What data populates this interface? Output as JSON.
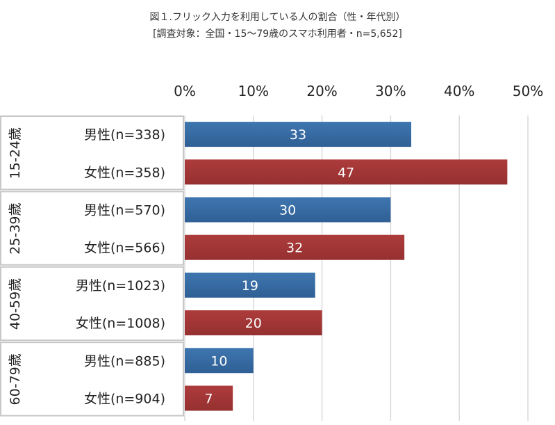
{
  "chart_data": {
    "type": "bar",
    "orientation": "horizontal",
    "title": "図１.フリック入力を利用している人の割合（性・年代別）",
    "subtitle": "[調査対象：全国・15～79歳のスマホ利用者・n=5,652]",
    "xlim": [
      0,
      50
    ],
    "x_ticks": [
      "0%",
      "10%",
      "20%",
      "30%",
      "40%",
      "50%"
    ],
    "x_tick_values": [
      0,
      10,
      20,
      30,
      40,
      50
    ],
    "axis_position": "top",
    "grid": true,
    "groups": [
      "15-24歳",
      "25-39歳",
      "40-59歳",
      "60-79歳"
    ],
    "categories": [
      "男性(n=338)",
      "女性(n=358)",
      "男性(n=570)",
      "女性(n=566)",
      "男性(n=1023)",
      "女性(n=1008)",
      "男性(n=885)",
      "女性(n=904)"
    ],
    "values": [
      33,
      47,
      30,
      32,
      19,
      20,
      10,
      7
    ],
    "bar_colors": {
      "男性": "#3a6da6",
      "女性": "#a33535"
    }
  }
}
